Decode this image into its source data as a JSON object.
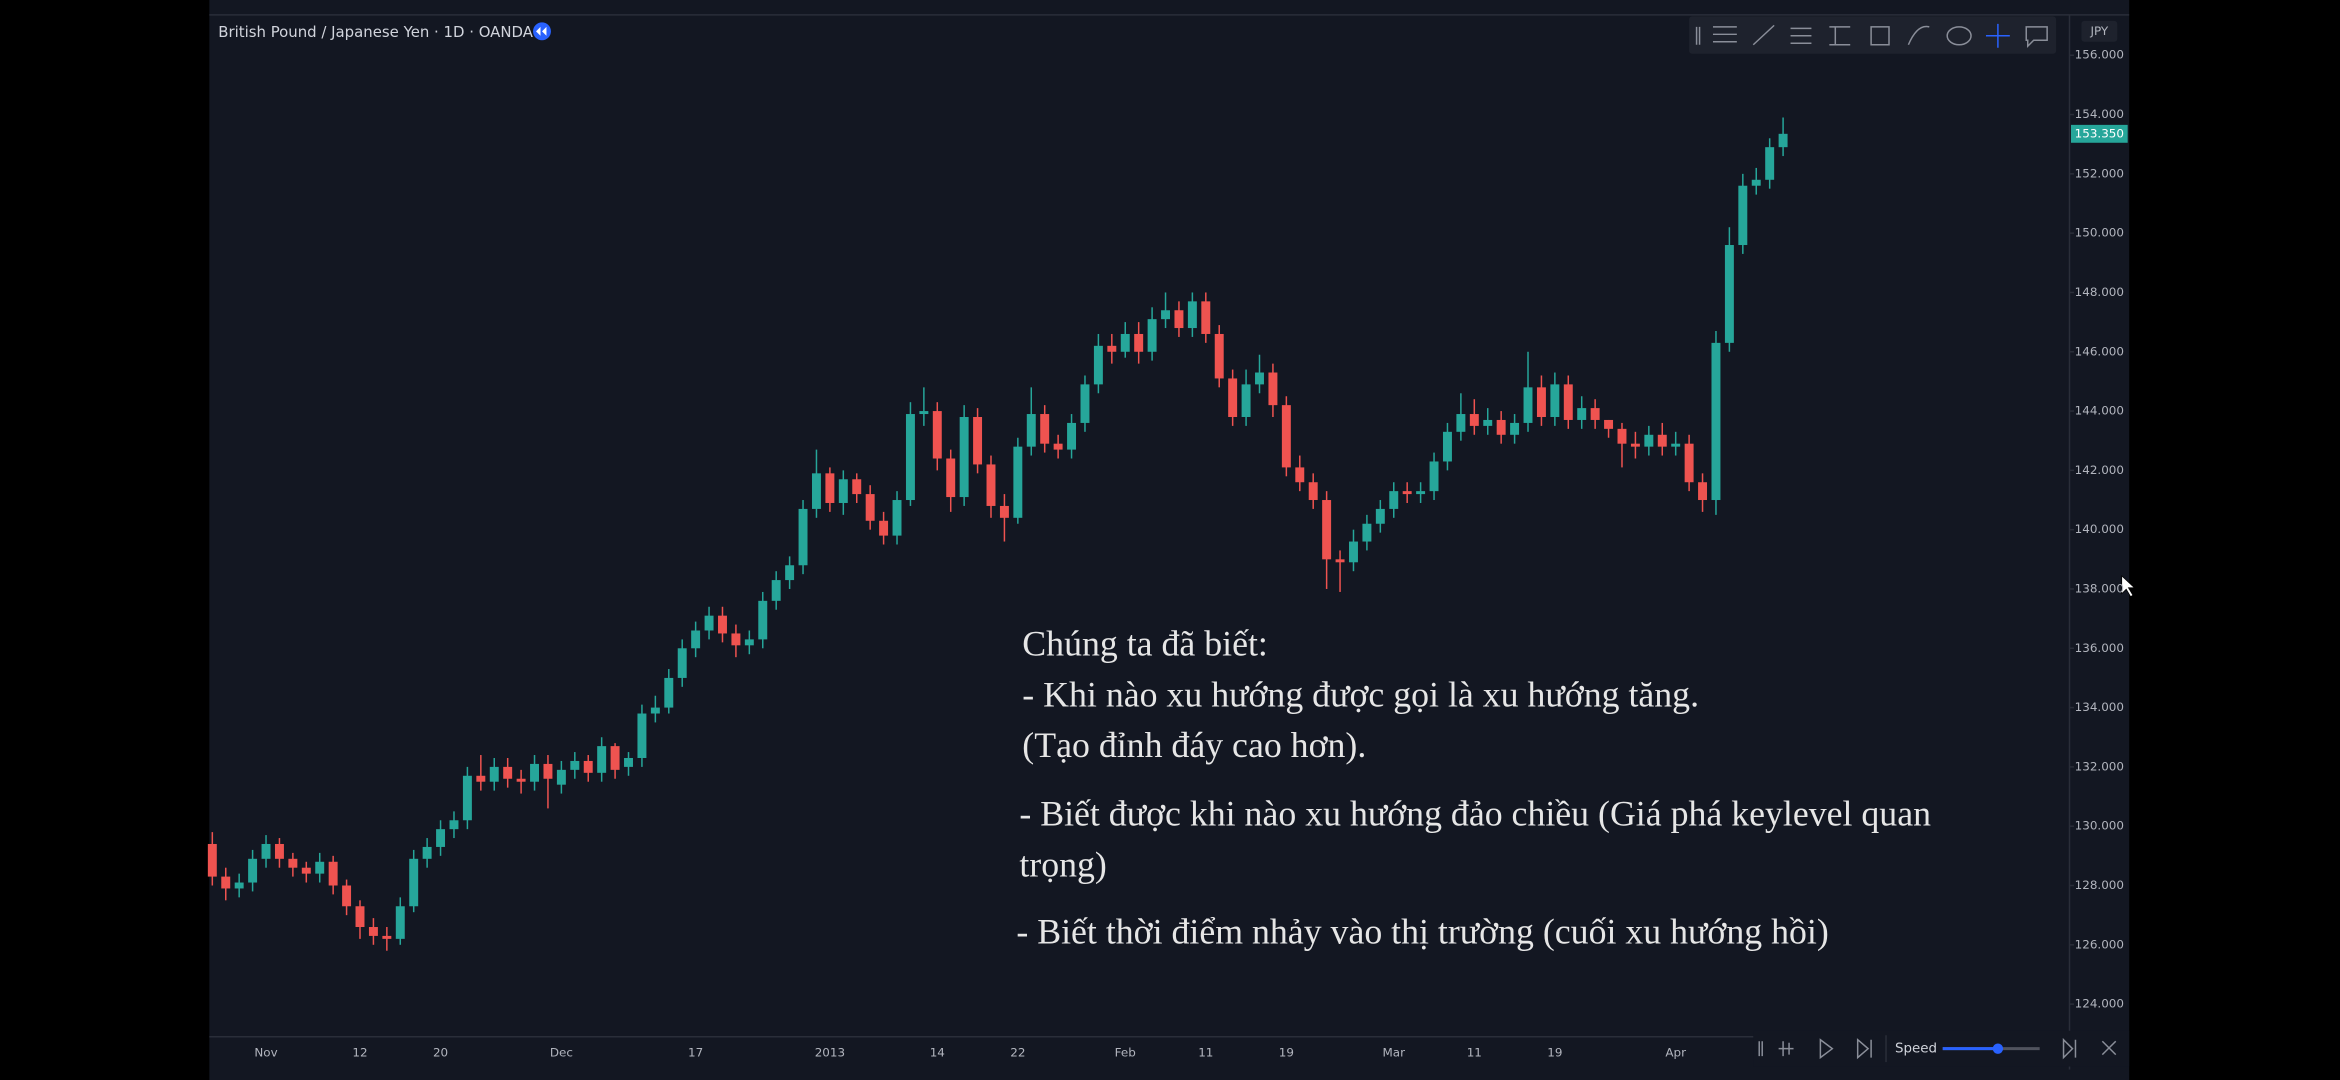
{
  "chart_data": {
    "type": "candlestick",
    "title": "British Pound / Japanese Yen · 1D · OANDA",
    "currency": "JPY",
    "last_price_label": "153.350",
    "up_color": "#26a69a",
    "down_color": "#ef5350",
    "grid": false,
    "categories": [
      null,
      null,
      null,
      null,
      "Nov",
      null,
      null,
      null,
      null,
      null,
      null,
      "12",
      null,
      null,
      null,
      null,
      null,
      "20",
      null,
      null,
      null,
      null,
      null,
      null,
      null,
      null,
      "Dec",
      null,
      null,
      null,
      null,
      null,
      null,
      null,
      null,
      null,
      "17",
      null,
      null,
      null,
      null,
      null,
      null,
      null,
      null,
      null,
      "2013",
      null,
      null,
      null,
      null,
      null,
      null,
      null,
      "14",
      null,
      null,
      null,
      null,
      null,
      "22",
      null,
      null,
      null,
      null,
      null,
      null,
      null,
      "Feb",
      null,
      null,
      null,
      null,
      null,
      "11",
      null,
      null,
      null,
      null,
      null,
      "19",
      null,
      null,
      null,
      null,
      null,
      null,
      null,
      "Mar",
      null,
      null,
      null,
      null,
      null,
      "11",
      null,
      null,
      null,
      null,
      null,
      "19",
      null,
      null,
      null,
      null,
      null,
      null,
      null,
      null,
      "Apr",
      null,
      null,
      null,
      null,
      null,
      null,
      null,
      null
    ],
    "open": [
      129.4,
      128.3,
      127.9,
      128.1,
      128.9,
      129.4,
      128.9,
      128.6,
      128.4,
      128.8,
      128.0,
      127.3,
      126.6,
      126.3,
      126.2,
      127.3,
      128.9,
      129.3,
      129.9,
      130.2,
      131.7,
      131.5,
      132.0,
      131.6,
      131.5,
      132.1,
      131.4,
      131.9,
      132.2,
      131.8,
      132.7,
      132.0,
      132.3,
      133.8,
      134.0,
      135.0,
      136.0,
      136.6,
      137.1,
      136.5,
      136.1,
      136.3,
      137.6,
      138.3,
      138.8,
      140.7,
      141.9,
      140.9,
      141.7,
      141.2,
      140.3,
      139.8,
      141.0,
      143.9,
      144.0,
      142.4,
      141.1,
      143.8,
      142.2,
      140.8,
      140.4,
      142.8,
      143.9,
      142.9,
      142.7,
      143.6,
      144.9,
      146.2,
      146.0,
      146.6,
      146.0,
      147.1,
      147.4,
      146.8,
      147.7,
      146.6,
      145.1,
      143.8,
      144.9,
      145.3,
      144.2,
      142.1,
      141.6,
      141.0,
      139.0,
      138.9,
      139.6,
      140.2,
      140.7,
      141.3,
      141.2,
      141.3,
      142.3,
      143.3,
      143.9,
      143.5,
      143.7,
      143.2,
      143.6,
      144.8,
      143.8,
      144.9,
      143.7,
      144.1,
      143.7,
      143.4,
      142.9,
      142.8,
      143.2,
      142.8,
      142.9,
      141.6,
      141.0,
      146.3,
      149.6,
      151.6,
      151.8,
      152.9
    ],
    "high": [
      129.8,
      128.6,
      128.4,
      129.2,
      129.7,
      129.6,
      129.1,
      128.8,
      129.1,
      129.0,
      128.2,
      127.5,
      126.9,
      126.6,
      127.6,
      129.2,
      129.6,
      130.2,
      130.5,
      132.0,
      132.4,
      132.3,
      132.3,
      131.9,
      132.4,
      132.4,
      132.2,
      132.5,
      132.4,
      133.0,
      132.8,
      132.5,
      134.1,
      134.4,
      135.3,
      136.3,
      136.9,
      137.4,
      137.4,
      136.8,
      136.6,
      137.9,
      138.6,
      139.1,
      141.0,
      142.7,
      142.1,
      142.0,
      141.9,
      141.5,
      140.6,
      141.3,
      144.3,
      144.8,
      144.3,
      142.7,
      144.2,
      144.1,
      142.5,
      141.2,
      143.1,
      144.8,
      144.2,
      143.2,
      143.9,
      145.2,
      146.6,
      146.6,
      147.0,
      147.0,
      147.5,
      148.0,
      147.7,
      148.0,
      148.0,
      146.9,
      145.4,
      145.4,
      145.9,
      145.6,
      144.5,
      142.5,
      141.9,
      141.3,
      139.3,
      140.0,
      140.5,
      141.0,
      141.6,
      141.6,
      141.6,
      142.6,
      143.6,
      144.6,
      144.4,
      144.1,
      144.0,
      143.9,
      146.0,
      145.2,
      145.3,
      145.2,
      144.5,
      144.4,
      143.7,
      143.6,
      143.3,
      143.5,
      143.6,
      143.3,
      143.2,
      141.9,
      146.7,
      150.2,
      152.0,
      152.2,
      153.2,
      153.9
    ],
    "low": [
      128.0,
      127.5,
      127.6,
      127.8,
      128.6,
      128.6,
      128.3,
      128.1,
      128.1,
      127.7,
      127.0,
      126.2,
      126.0,
      125.8,
      126.0,
      127.1,
      128.6,
      129.0,
      129.6,
      129.9,
      131.2,
      131.2,
      131.3,
      131.1,
      131.2,
      130.6,
      131.1,
      131.6,
      131.5,
      131.5,
      131.6,
      131.7,
      132.0,
      133.5,
      133.8,
      134.7,
      135.7,
      136.3,
      136.2,
      135.7,
      135.8,
      136.0,
      137.3,
      138.0,
      138.5,
      140.4,
      140.6,
      140.5,
      140.9,
      140.0,
      139.5,
      139.5,
      140.8,
      143.5,
      142.0,
      140.6,
      140.8,
      141.9,
      140.4,
      139.6,
      140.2,
      142.5,
      142.6,
      142.4,
      142.4,
      143.3,
      144.6,
      145.6,
      145.8,
      145.6,
      145.7,
      146.8,
      146.5,
      146.5,
      146.3,
      144.8,
      143.5,
      143.5,
      144.6,
      143.8,
      141.8,
      141.3,
      140.7,
      138.0,
      137.9,
      138.6,
      139.3,
      139.9,
      140.4,
      140.9,
      140.9,
      141.0,
      142.0,
      143.0,
      143.2,
      143.2,
      142.9,
      142.9,
      143.3,
      143.5,
      143.5,
      143.4,
      143.4,
      143.4,
      143.1,
      142.1,
      142.4,
      142.5,
      142.5,
      142.5,
      141.3,
      140.6,
      140.5,
      146.0,
      149.3,
      151.3,
      151.5,
      152.6
    ],
    "close": [
      128.3,
      127.9,
      128.1,
      128.9,
      129.4,
      128.9,
      128.6,
      128.4,
      128.8,
      128.0,
      127.3,
      126.6,
      126.3,
      126.2,
      127.3,
      128.9,
      129.3,
      129.9,
      130.2,
      131.7,
      131.5,
      132.0,
      131.6,
      131.5,
      132.1,
      131.6,
      131.9,
      132.2,
      131.8,
      132.7,
      131.9,
      132.3,
      133.8,
      134.0,
      135.0,
      136.0,
      136.6,
      137.1,
      136.5,
      136.1,
      136.3,
      137.6,
      138.3,
      138.8,
      140.7,
      141.9,
      140.9,
      141.7,
      141.2,
      140.3,
      139.8,
      141.0,
      143.9,
      144.0,
      142.4,
      141.1,
      143.8,
      142.2,
      140.8,
      140.4,
      142.8,
      143.9,
      142.9,
      142.7,
      143.6,
      144.9,
      146.2,
      146.0,
      146.6,
      146.0,
      147.1,
      147.4,
      146.8,
      147.7,
      146.6,
      145.1,
      143.8,
      144.9,
      145.3,
      144.2,
      142.1,
      141.6,
      141.0,
      139.0,
      138.9,
      139.6,
      140.2,
      140.7,
      141.3,
      141.2,
      141.3,
      142.3,
      143.3,
      143.9,
      143.5,
      143.7,
      143.2,
      143.6,
      144.8,
      143.8,
      144.9,
      143.7,
      144.1,
      143.7,
      143.4,
      142.9,
      142.8,
      143.2,
      142.8,
      142.9,
      141.6,
      141.0,
      146.3,
      149.6,
      151.6,
      151.8,
      152.9,
      153.35
    ],
    "ylim": [
      123.0,
      157.36
    ],
    "yticks": [
      {
        "value": 124,
        "label": "124.000"
      },
      {
        "value": 126,
        "label": "126.000"
      },
      {
        "value": 128,
        "label": "128.000"
      },
      {
        "value": 130,
        "label": "130.000"
      },
      {
        "value": 132,
        "label": "132.000"
      },
      {
        "value": 134,
        "label": "134.000"
      },
      {
        "value": 136,
        "label": "136.000"
      },
      {
        "value": 138,
        "label": "138.000"
      },
      {
        "value": 140,
        "label": "140.000"
      },
      {
        "value": 142,
        "label": "142.000"
      },
      {
        "value": 144,
        "label": "144.000"
      },
      {
        "value": 146,
        "label": "146.000"
      },
      {
        "value": 148,
        "label": "148.000"
      },
      {
        "value": 150,
        "label": "150.000"
      },
      {
        "value": 152,
        "label": "152.000"
      },
      {
        "value": 154,
        "label": "154.000"
      },
      {
        "value": 156,
        "label": "156.000"
      }
    ],
    "annotations": [
      "Chúng ta đã biết:",
      "- Khi nào xu hướng được gọi là xu hướng tăng.",
      "(Tạo đỉnh đáy cao hơn).",
      "- Biết được khi nào xu hướng đảo chiều (Giá phá keylevel quan",
      "trọng)",
      "- Biết thời điểm nhảy vào thị trường (cuối xu hướng hồi)"
    ]
  },
  "replay_toolbar": {
    "speed_label": "Speed"
  }
}
